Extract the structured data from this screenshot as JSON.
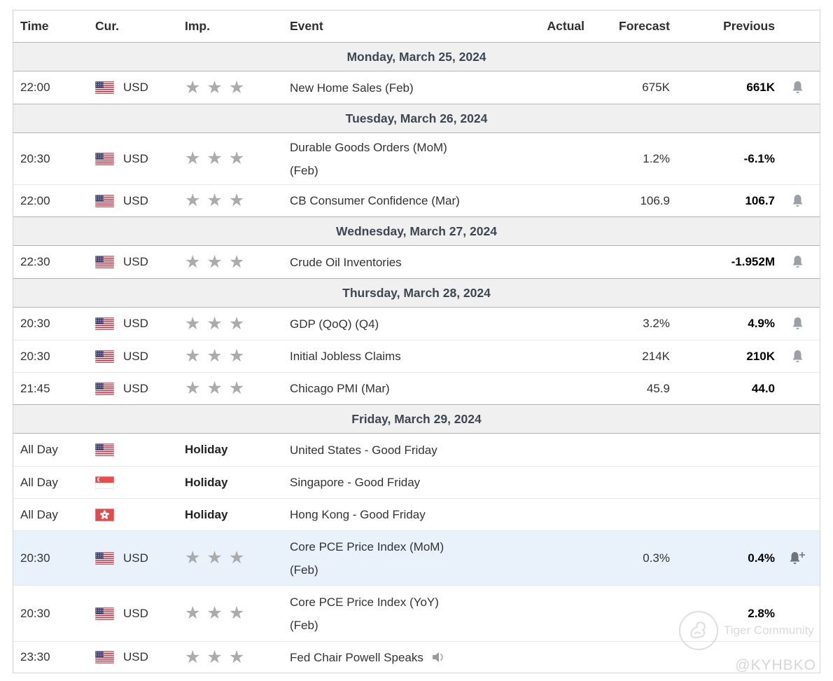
{
  "table": {
    "headers": {
      "time": "Time",
      "cur": "Cur.",
      "imp": "Imp.",
      "event": "Event",
      "actual": "Actual",
      "forecast": "Forecast",
      "previous": "Previous"
    },
    "days": [
      {
        "date": "Monday, March 25, 2024",
        "rows": [
          {
            "time": "22:00",
            "flag": "us",
            "code": "USD",
            "stars": 3,
            "event": "New Home Sales (Feb)",
            "actual": "",
            "forecast": "675K",
            "previous": "661K",
            "bell": "bell"
          }
        ]
      },
      {
        "date": "Tuesday, March 26, 2024",
        "rows": [
          {
            "time": "20:30",
            "flag": "us",
            "code": "USD",
            "stars": 3,
            "event": "Durable Goods Orders (MoM)",
            "event2": "(Feb)",
            "actual": "",
            "forecast": "1.2%",
            "previous": "-6.1%"
          },
          {
            "time": "22:00",
            "flag": "us",
            "code": "USD",
            "stars": 3,
            "event": "CB Consumer Confidence (Mar)",
            "actual": "",
            "forecast": "106.9",
            "previous": "106.7",
            "bell": "bell"
          }
        ]
      },
      {
        "date": "Wednesday, March 27, 2024",
        "rows": [
          {
            "time": "22:30",
            "flag": "us",
            "code": "USD",
            "stars": 3,
            "event": "Crude Oil Inventories",
            "actual": "",
            "forecast": "",
            "previous": "-1.952M",
            "bell": "bell"
          }
        ]
      },
      {
        "date": "Thursday, March 28, 2024",
        "rows": [
          {
            "time": "20:30",
            "flag": "us",
            "code": "USD",
            "stars": 3,
            "event": "GDP (QoQ) (Q4)",
            "actual": "",
            "forecast": "3.2%",
            "previous": "4.9%",
            "bell": "bell"
          },
          {
            "time": "20:30",
            "flag": "us",
            "code": "USD",
            "stars": 3,
            "event": "Initial Jobless Claims",
            "actual": "",
            "forecast": "214K",
            "previous": "210K",
            "bell": "bell"
          },
          {
            "time": "21:45",
            "flag": "us",
            "code": "USD",
            "stars": 3,
            "event": "Chicago PMI (Mar)",
            "actual": "",
            "forecast": "45.9",
            "previous": "44.0"
          }
        ]
      },
      {
        "date": "Friday, March 29, 2024",
        "rows": [
          {
            "time": "All Day",
            "flag": "us",
            "holiday": "Holiday",
            "event": "United States - Good Friday"
          },
          {
            "time": "All Day",
            "flag": "sg",
            "holiday": "Holiday",
            "event": "Singapore - Good Friday"
          },
          {
            "time": "All Day",
            "flag": "hk",
            "holiday": "Holiday",
            "event": "Hong Kong - Good Friday"
          },
          {
            "time": "20:30",
            "flag": "us",
            "code": "USD",
            "stars": 3,
            "event": "Core PCE Price Index (MoM)",
            "event2": "(Feb)",
            "actual": "",
            "forecast": "0.3%",
            "previous": "0.4%",
            "bell": "bell-plus",
            "highlighted": true
          },
          {
            "time": "20:30",
            "flag": "us",
            "code": "USD",
            "stars": 3,
            "event": "Core PCE Price Index (YoY)",
            "event2": "(Feb)",
            "actual": "",
            "forecast": "",
            "previous": "2.8%"
          },
          {
            "time": "23:30",
            "flag": "us",
            "code": "USD",
            "stars": 3,
            "event": "Fed Chair Powell Speaks",
            "speaker": true
          }
        ]
      }
    ]
  },
  "watermark": {
    "community": "Tiger Community",
    "handle": "@KYHBKO"
  },
  "colors": {
    "date_band_bg": "#f0f0f0",
    "date_text": "#3d4753",
    "highlight_row_bg": "#e9f1fa",
    "star_gray": "#ababab",
    "bell_gray": "#9aa0a6",
    "previous_text": "#000000"
  }
}
